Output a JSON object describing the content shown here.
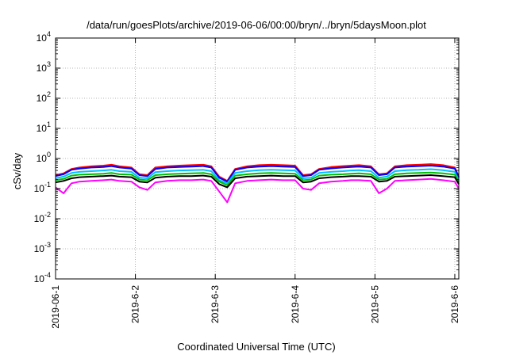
{
  "chart_data": {
    "type": "line",
    "title": "/data/run/goesPlots/archive/2019-06-06/00:00/bryn/../bryn/5daysMoon.plot",
    "xlabel": "Coordinated Universal Time (UTC)",
    "ylabel": "cSv/day",
    "yscale": "log",
    "ylim": [
      0.0001,
      10000
    ],
    "xlim": [
      0,
      5.05
    ],
    "grid": true,
    "x_ticks": [
      {
        "value": 0,
        "label": "2019-06-1"
      },
      {
        "value": 1,
        "label": "2019-6-2"
      },
      {
        "value": 2,
        "label": "2019-6-3"
      },
      {
        "value": 3,
        "label": "2019-6-4"
      },
      {
        "value": 4,
        "label": "2019-6-5"
      },
      {
        "value": 5,
        "label": "2019-6-6"
      }
    ],
    "y_ticks": [
      {
        "value": 0.0001,
        "base": "10",
        "exp": "-4"
      },
      {
        "value": 0.001,
        "base": "10",
        "exp": "-3"
      },
      {
        "value": 0.01,
        "base": "10",
        "exp": "-2"
      },
      {
        "value": 0.1,
        "base": "10",
        "exp": "-1"
      },
      {
        "value": 1,
        "base": "10",
        "exp": "0"
      },
      {
        "value": 10,
        "base": "10",
        "exp": "1"
      },
      {
        "value": 100,
        "base": "10",
        "exp": "2"
      },
      {
        "value": 1000,
        "base": "10",
        "exp": "3"
      },
      {
        "value": 10000,
        "base": "10",
        "exp": "4"
      }
    ],
    "x": [
      0.0,
      0.1,
      0.2,
      0.3,
      0.45,
      0.6,
      0.7,
      0.8,
      0.95,
      1.05,
      1.15,
      1.25,
      1.4,
      1.55,
      1.7,
      1.85,
      1.95,
      2.05,
      2.15,
      2.25,
      2.4,
      2.55,
      2.7,
      2.85,
      3.0,
      3.1,
      3.2,
      3.3,
      3.45,
      3.6,
      3.7,
      3.8,
      3.95,
      4.05,
      4.15,
      4.25,
      4.4,
      4.55,
      4.7,
      4.85,
      5.0,
      5.05
    ],
    "series": [
      {
        "color": "#ff0000",
        "values": [
          0.28,
          0.32,
          0.45,
          0.5,
          0.55,
          0.58,
          0.62,
          0.55,
          0.5,
          0.3,
          0.28,
          0.5,
          0.55,
          0.58,
          0.6,
          0.62,
          0.55,
          0.25,
          0.18,
          0.45,
          0.55,
          0.6,
          0.62,
          0.6,
          0.58,
          0.28,
          0.3,
          0.45,
          0.52,
          0.56,
          0.58,
          0.6,
          0.55,
          0.3,
          0.32,
          0.55,
          0.6,
          0.62,
          0.65,
          0.6,
          0.5,
          0.25
        ]
      },
      {
        "color": "#0000ff",
        "values": [
          0.26,
          0.3,
          0.42,
          0.46,
          0.5,
          0.52,
          0.56,
          0.5,
          0.46,
          0.28,
          0.26,
          0.45,
          0.5,
          0.52,
          0.54,
          0.56,
          0.5,
          0.23,
          0.17,
          0.42,
          0.5,
          0.54,
          0.56,
          0.54,
          0.52,
          0.26,
          0.28,
          0.42,
          0.47,
          0.5,
          0.52,
          0.54,
          0.5,
          0.28,
          0.3,
          0.5,
          0.54,
          0.56,
          0.58,
          0.54,
          0.46,
          0.23
        ]
      },
      {
        "color": "#00c0ff",
        "values": [
          0.22,
          0.25,
          0.33,
          0.36,
          0.38,
          0.4,
          0.42,
          0.38,
          0.36,
          0.23,
          0.22,
          0.35,
          0.38,
          0.4,
          0.41,
          0.42,
          0.38,
          0.19,
          0.15,
          0.33,
          0.38,
          0.41,
          0.42,
          0.41,
          0.4,
          0.22,
          0.23,
          0.33,
          0.36,
          0.38,
          0.4,
          0.41,
          0.38,
          0.23,
          0.25,
          0.38,
          0.41,
          0.42,
          0.44,
          0.41,
          0.36,
          0.19
        ]
      },
      {
        "color": "#00c000",
        "values": [
          0.19,
          0.21,
          0.27,
          0.29,
          0.3,
          0.31,
          0.33,
          0.3,
          0.29,
          0.2,
          0.19,
          0.28,
          0.3,
          0.31,
          0.32,
          0.33,
          0.3,
          0.17,
          0.13,
          0.27,
          0.3,
          0.32,
          0.33,
          0.32,
          0.31,
          0.19,
          0.2,
          0.27,
          0.29,
          0.3,
          0.31,
          0.32,
          0.3,
          0.2,
          0.21,
          0.3,
          0.32,
          0.33,
          0.34,
          0.32,
          0.29,
          0.17
        ]
      },
      {
        "color": "#000000",
        "values": [
          0.16,
          0.18,
          0.22,
          0.24,
          0.25,
          0.26,
          0.27,
          0.25,
          0.24,
          0.17,
          0.16,
          0.23,
          0.25,
          0.26,
          0.26,
          0.27,
          0.25,
          0.14,
          0.11,
          0.22,
          0.25,
          0.26,
          0.27,
          0.26,
          0.26,
          0.16,
          0.17,
          0.22,
          0.24,
          0.25,
          0.26,
          0.26,
          0.25,
          0.17,
          0.18,
          0.25,
          0.26,
          0.27,
          0.28,
          0.26,
          0.24,
          0.14
        ]
      },
      {
        "color": "#ff00ff",
        "values": [
          0.11,
          0.07,
          0.15,
          0.17,
          0.18,
          0.19,
          0.2,
          0.18,
          0.17,
          0.11,
          0.09,
          0.16,
          0.18,
          0.19,
          0.19,
          0.2,
          0.18,
          0.08,
          0.035,
          0.15,
          0.18,
          0.19,
          0.2,
          0.19,
          0.19,
          0.1,
          0.09,
          0.15,
          0.17,
          0.18,
          0.19,
          0.19,
          0.18,
          0.07,
          0.1,
          0.18,
          0.19,
          0.2,
          0.21,
          0.19,
          0.17,
          0.1
        ]
      }
    ]
  }
}
